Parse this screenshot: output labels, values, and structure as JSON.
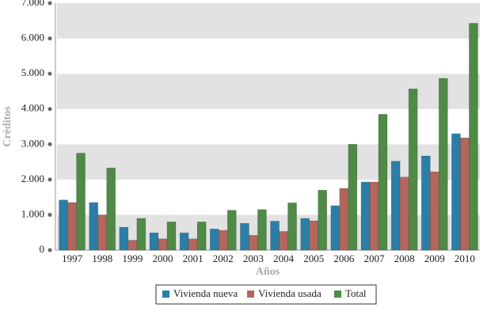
{
  "chart_data": {
    "type": "bar",
    "y_label": "Créditos",
    "x_label": "Años",
    "categories": [
      "1997",
      "1998",
      "1999",
      "2000",
      "2001",
      "2002",
      "2003",
      "2004",
      "2005",
      "2006",
      "2007",
      "2008",
      "2009",
      "2010"
    ],
    "series": [
      {
        "name": "Vivienda nueva",
        "color": "#2b7ea6",
        "values": [
          1420,
          1350,
          650,
          490,
          490,
          600,
          760,
          820,
          900,
          1260,
          1930,
          2520,
          2670,
          3300
        ]
      },
      {
        "name": "Vivienda usada",
        "color": "#b3665c",
        "values": [
          1350,
          1000,
          280,
          320,
          320,
          560,
          420,
          530,
          830,
          1750,
          1930,
          2070,
          2220,
          3180
        ]
      },
      {
        "name": "Total",
        "color": "#4f8a47",
        "values": [
          2750,
          2330,
          900,
          800,
          800,
          1130,
          1150,
          1340,
          1700,
          3000,
          3850,
          4570,
          4870,
          6430
        ]
      }
    ],
    "ylim": [
      0,
      7000
    ],
    "yticks": [
      0,
      {
        "value": 1000,
        "label": "1.000"
      },
      {
        "value": 2000,
        "label": "2.000"
      },
      {
        "value": 3000,
        "label": "3.000"
      },
      {
        "value": 4000,
        "label": "4.000"
      },
      {
        "value": 5000,
        "label": "5.000"
      },
      {
        "value": 6000,
        "label": "6.000"
      },
      {
        "value": 7000,
        "label": "7.000"
      }
    ],
    "grid": true,
    "legend": "bottom"
  }
}
